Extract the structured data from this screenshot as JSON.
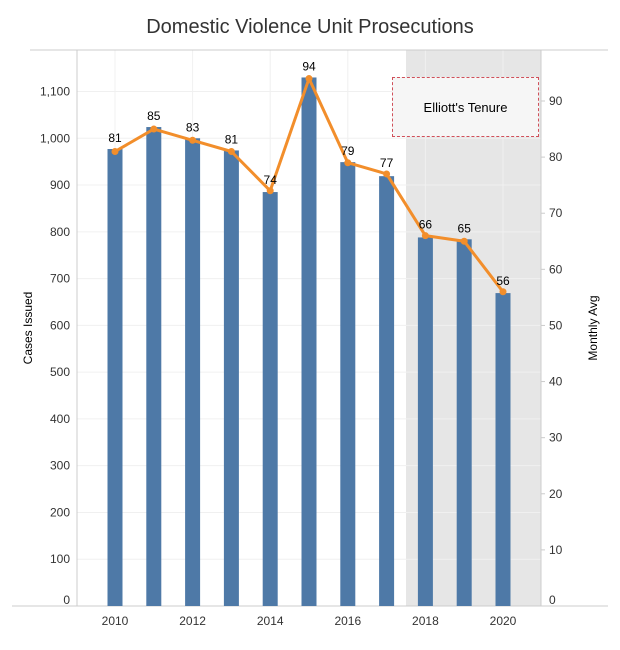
{
  "chart_data": {
    "type": "bar",
    "title": "Domestic Violence Unit Prosecutions",
    "xlabel": "",
    "ylabel": "Cases Issued",
    "y2label": "Monthly Avg",
    "categories": [
      "2010",
      "2011",
      "2012",
      "2013",
      "2014",
      "2015",
      "2016",
      "2017",
      "2018",
      "2019",
      "2020"
    ],
    "x_tick_labels": [
      "2010",
      "2012",
      "2014",
      "2016",
      "2018",
      "2020"
    ],
    "series": [
      {
        "name": "Cases Issued",
        "type": "bar",
        "axis": "left",
        "color": "#4e79a7",
        "values": [
          977,
          1024,
          1000,
          974,
          885,
          1130,
          949,
          919,
          788,
          784,
          669
        ]
      },
      {
        "name": "Monthly Avg",
        "type": "line",
        "axis": "right",
        "color": "#f28e2b",
        "values": [
          81,
          85,
          83,
          81,
          74,
          94,
          79,
          77,
          66,
          65,
          56
        ],
        "labels": [
          "81",
          "85",
          "83",
          "81",
          "74",
          "94",
          "79",
          "77",
          "66",
          "65",
          "56"
        ]
      }
    ],
    "ylim": [
      0,
      1180
    ],
    "y_ticks": [
      0,
      100,
      200,
      300,
      400,
      500,
      600,
      700,
      800,
      900,
      1000,
      1100
    ],
    "y_tick_labels": [
      "0",
      "100",
      "200",
      "300",
      "400",
      "500",
      "600",
      "700",
      "800",
      "900",
      "1,000",
      "1,100"
    ],
    "y2lim": [
      0,
      100.6
    ],
    "y2_ticks": [
      0,
      10,
      20,
      30,
      40,
      50,
      60,
      70,
      80,
      90
    ],
    "y2_tick_labels": [
      "0",
      "10",
      "20",
      "30",
      "40",
      "50",
      "60",
      "70",
      "80",
      "90"
    ],
    "grid": true,
    "highlight_region": {
      "from": "2017.5",
      "to": "end",
      "color": "#e6e6e6"
    },
    "annotation": {
      "text": "Elliott's Tenure",
      "region": "2018-2020"
    }
  }
}
